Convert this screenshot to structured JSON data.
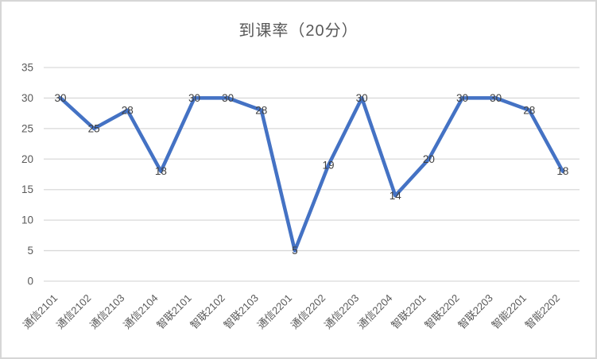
{
  "chart_data": {
    "type": "line",
    "title": "到课率（20分）",
    "categories": [
      "通信2101",
      "通信2102",
      "通信2103",
      "通信2104",
      "智联2101",
      "智联2102",
      "智联2103",
      "通信2201",
      "通信2202",
      "通信2203",
      "通信2204",
      "智联2201",
      "智联2202",
      "智联2203",
      "智能2201",
      "智能2202"
    ],
    "series": [
      {
        "name": "到课率",
        "values": [
          30,
          25,
          28,
          18,
          30,
          30,
          28,
          5,
          19,
          30,
          14,
          20,
          30,
          30,
          28,
          18
        ]
      }
    ],
    "ylim": [
      0,
      35
    ],
    "ytick_step": 5,
    "ytick_labels": [
      "0",
      "5",
      "10",
      "15",
      "20",
      "25",
      "30",
      "35"
    ],
    "grid": "horizontal",
    "legend": "none",
    "data_labels": "center",
    "x_label_rotation_deg": 45,
    "colors": {
      "line": "#4472C4",
      "gridline": "#D9D9D9",
      "axis_text": "#595959",
      "data_label_text": "#404040",
      "title_text": "#595959",
      "frame_border": "#D6D6D6",
      "background": "#FFFFFF"
    }
  }
}
